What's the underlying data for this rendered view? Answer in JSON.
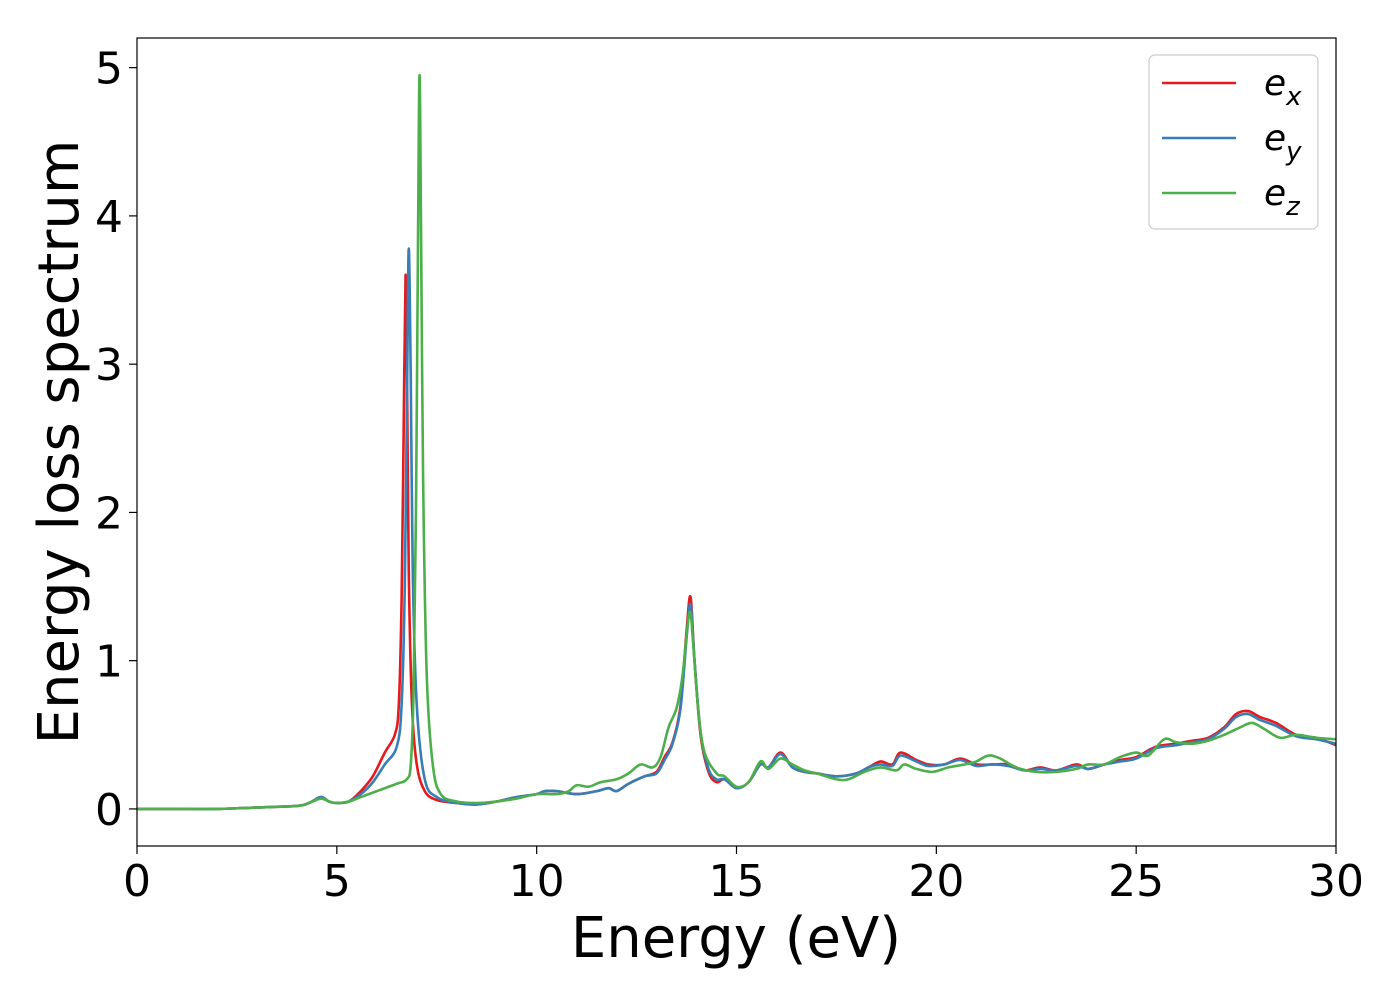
{
  "chart_data": {
    "type": "line",
    "xlabel": "Energy (eV)",
    "ylabel": "Energy loss spectrum",
    "xlim": [
      0,
      30
    ],
    "ylim": [
      -0.25,
      5.2
    ],
    "xticks": [
      0,
      5,
      10,
      15,
      20,
      25,
      30
    ],
    "yticks": [
      0,
      1,
      2,
      3,
      4,
      5
    ],
    "grid": false,
    "legend_position": "top-right",
    "series": [
      {
        "name": "ex",
        "label_base": "e",
        "label_sub": "x",
        "color": "#e41a1c",
        "points": [
          [
            0,
            0
          ],
          [
            1,
            0
          ],
          [
            2,
            0
          ],
          [
            3,
            0.01
          ],
          [
            4,
            0.02
          ],
          [
            4.3,
            0.04
          ],
          [
            4.6,
            0.08
          ],
          [
            4.8,
            0.05
          ],
          [
            5,
            0.04
          ],
          [
            5.3,
            0.05
          ],
          [
            5.6,
            0.12
          ],
          [
            5.9,
            0.22
          ],
          [
            6.2,
            0.38
          ],
          [
            6.45,
            0.5
          ],
          [
            6.55,
            0.7
          ],
          [
            6.62,
            1.4
          ],
          [
            6.67,
            2.5
          ],
          [
            6.72,
            3.6
          ],
          [
            6.76,
            2.8
          ],
          [
            6.8,
            1.6
          ],
          [
            6.88,
            0.7
          ],
          [
            7,
            0.3
          ],
          [
            7.2,
            0.12
          ],
          [
            7.5,
            0.06
          ],
          [
            8,
            0.04
          ],
          [
            8.5,
            0.03
          ],
          [
            9,
            0.05
          ],
          [
            9.5,
            0.08
          ],
          [
            10,
            0.1
          ],
          [
            10.2,
            0.12
          ],
          [
            10.5,
            0.12
          ],
          [
            11,
            0.1
          ],
          [
            11.5,
            0.12
          ],
          [
            11.8,
            0.14
          ],
          [
            12,
            0.12
          ],
          [
            12.3,
            0.17
          ],
          [
            12.7,
            0.22
          ],
          [
            13,
            0.25
          ],
          [
            13.2,
            0.35
          ],
          [
            13.4,
            0.45
          ],
          [
            13.6,
            0.7
          ],
          [
            13.75,
            1.2
          ],
          [
            13.85,
            1.43
          ],
          [
            13.95,
            1.0
          ],
          [
            14.1,
            0.5
          ],
          [
            14.3,
            0.25
          ],
          [
            14.5,
            0.18
          ],
          [
            14.7,
            0.2
          ],
          [
            15,
            0.14
          ],
          [
            15.3,
            0.18
          ],
          [
            15.6,
            0.3
          ],
          [
            15.8,
            0.28
          ],
          [
            16.1,
            0.38
          ],
          [
            16.4,
            0.28
          ],
          [
            16.7,
            0.25
          ],
          [
            17,
            0.24
          ],
          [
            17.5,
            0.22
          ],
          [
            18,
            0.24
          ],
          [
            18.3,
            0.28
          ],
          [
            18.6,
            0.32
          ],
          [
            18.9,
            0.3
          ],
          [
            19.1,
            0.38
          ],
          [
            19.5,
            0.33
          ],
          [
            19.8,
            0.3
          ],
          [
            20.2,
            0.3
          ],
          [
            20.6,
            0.34
          ],
          [
            21,
            0.3
          ],
          [
            21.4,
            0.3
          ],
          [
            21.8,
            0.3
          ],
          [
            22.2,
            0.26
          ],
          [
            22.6,
            0.28
          ],
          [
            23,
            0.26
          ],
          [
            23.5,
            0.3
          ],
          [
            23.8,
            0.27
          ],
          [
            24.2,
            0.3
          ],
          [
            24.6,
            0.33
          ],
          [
            25,
            0.35
          ],
          [
            25.5,
            0.42
          ],
          [
            26,
            0.44
          ],
          [
            26.4,
            0.46
          ],
          [
            26.8,
            0.48
          ],
          [
            27.2,
            0.55
          ],
          [
            27.5,
            0.64
          ],
          [
            27.8,
            0.66
          ],
          [
            28.1,
            0.62
          ],
          [
            28.5,
            0.58
          ],
          [
            29,
            0.5
          ],
          [
            29.5,
            0.48
          ],
          [
            30,
            0.43
          ]
        ]
      },
      {
        "name": "ey",
        "label_base": "e",
        "label_sub": "y",
        "color": "#377eb8",
        "points": [
          [
            0,
            0
          ],
          [
            1,
            0
          ],
          [
            2,
            0
          ],
          [
            3,
            0.01
          ],
          [
            4,
            0.02
          ],
          [
            4.3,
            0.04
          ],
          [
            4.6,
            0.08
          ],
          [
            4.8,
            0.05
          ],
          [
            5,
            0.04
          ],
          [
            5.3,
            0.05
          ],
          [
            5.6,
            0.1
          ],
          [
            5.9,
            0.18
          ],
          [
            6.2,
            0.3
          ],
          [
            6.5,
            0.42
          ],
          [
            6.62,
            0.7
          ],
          [
            6.7,
            1.5
          ],
          [
            6.76,
            2.9
          ],
          [
            6.8,
            3.78
          ],
          [
            6.85,
            2.9
          ],
          [
            6.9,
            1.6
          ],
          [
            7,
            0.7
          ],
          [
            7.2,
            0.2
          ],
          [
            7.5,
            0.08
          ],
          [
            8,
            0.04
          ],
          [
            8.5,
            0.03
          ],
          [
            9,
            0.05
          ],
          [
            9.5,
            0.08
          ],
          [
            10,
            0.1
          ],
          [
            10.2,
            0.12
          ],
          [
            10.5,
            0.12
          ],
          [
            11,
            0.1
          ],
          [
            11.5,
            0.12
          ],
          [
            11.8,
            0.14
          ],
          [
            12,
            0.12
          ],
          [
            12.3,
            0.17
          ],
          [
            12.7,
            0.22
          ],
          [
            13,
            0.24
          ],
          [
            13.2,
            0.33
          ],
          [
            13.4,
            0.44
          ],
          [
            13.6,
            0.68
          ],
          [
            13.75,
            1.15
          ],
          [
            13.85,
            1.38
          ],
          [
            13.95,
            1.0
          ],
          [
            14.1,
            0.52
          ],
          [
            14.3,
            0.27
          ],
          [
            14.5,
            0.2
          ],
          [
            14.7,
            0.2
          ],
          [
            15,
            0.14
          ],
          [
            15.3,
            0.18
          ],
          [
            15.6,
            0.3
          ],
          [
            15.8,
            0.28
          ],
          [
            16.1,
            0.37
          ],
          [
            16.4,
            0.28
          ],
          [
            16.7,
            0.25
          ],
          [
            17,
            0.24
          ],
          [
            17.5,
            0.22
          ],
          [
            18,
            0.24
          ],
          [
            18.3,
            0.28
          ],
          [
            18.6,
            0.3
          ],
          [
            18.9,
            0.29
          ],
          [
            19.1,
            0.36
          ],
          [
            19.5,
            0.32
          ],
          [
            19.8,
            0.29
          ],
          [
            20.2,
            0.3
          ],
          [
            20.6,
            0.33
          ],
          [
            21,
            0.29
          ],
          [
            21.4,
            0.3
          ],
          [
            21.8,
            0.29
          ],
          [
            22.2,
            0.26
          ],
          [
            22.6,
            0.27
          ],
          [
            23,
            0.26
          ],
          [
            23.5,
            0.29
          ],
          [
            23.8,
            0.27
          ],
          [
            24.2,
            0.3
          ],
          [
            24.6,
            0.32
          ],
          [
            25,
            0.34
          ],
          [
            25.5,
            0.41
          ],
          [
            26,
            0.43
          ],
          [
            26.4,
            0.45
          ],
          [
            26.8,
            0.47
          ],
          [
            27.2,
            0.54
          ],
          [
            27.5,
            0.62
          ],
          [
            27.8,
            0.64
          ],
          [
            28.1,
            0.6
          ],
          [
            28.5,
            0.56
          ],
          [
            29,
            0.49
          ],
          [
            29.5,
            0.47
          ],
          [
            30,
            0.44
          ]
        ]
      },
      {
        "name": "ez",
        "label_base": "e",
        "label_sub": "z",
        "color": "#4daf4a",
        "points": [
          [
            0,
            0
          ],
          [
            1,
            0
          ],
          [
            2,
            0
          ],
          [
            3,
            0.01
          ],
          [
            4,
            0.02
          ],
          [
            4.3,
            0.04
          ],
          [
            4.6,
            0.07
          ],
          [
            4.8,
            0.05
          ],
          [
            5,
            0.04
          ],
          [
            5.3,
            0.05
          ],
          [
            5.6,
            0.08
          ],
          [
            6,
            0.12
          ],
          [
            6.5,
            0.17
          ],
          [
            6.75,
            0.2
          ],
          [
            6.85,
            0.3
          ],
          [
            6.92,
            0.8
          ],
          [
            6.98,
            2.0
          ],
          [
            7.03,
            3.8
          ],
          [
            7.07,
            4.95
          ],
          [
            7.11,
            3.8
          ],
          [
            7.16,
            2.2
          ],
          [
            7.25,
            0.9
          ],
          [
            7.4,
            0.3
          ],
          [
            7.6,
            0.1
          ],
          [
            8,
            0.05
          ],
          [
            8.5,
            0.04
          ],
          [
            9,
            0.05
          ],
          [
            9.5,
            0.07
          ],
          [
            10,
            0.1
          ],
          [
            10.5,
            0.1
          ],
          [
            10.8,
            0.12
          ],
          [
            11,
            0.16
          ],
          [
            11.3,
            0.15
          ],
          [
            11.6,
            0.18
          ],
          [
            12,
            0.2
          ],
          [
            12.3,
            0.24
          ],
          [
            12.6,
            0.3
          ],
          [
            12.9,
            0.28
          ],
          [
            13.1,
            0.35
          ],
          [
            13.3,
            0.55
          ],
          [
            13.5,
            0.68
          ],
          [
            13.65,
            0.9
          ],
          [
            13.78,
            1.25
          ],
          [
            13.85,
            1.32
          ],
          [
            13.92,
            1.1
          ],
          [
            14.05,
            0.65
          ],
          [
            14.2,
            0.38
          ],
          [
            14.5,
            0.24
          ],
          [
            14.7,
            0.22
          ],
          [
            15,
            0.15
          ],
          [
            15.3,
            0.18
          ],
          [
            15.6,
            0.32
          ],
          [
            15.8,
            0.27
          ],
          [
            16.1,
            0.34
          ],
          [
            16.4,
            0.3
          ],
          [
            16.7,
            0.26
          ],
          [
            17,
            0.24
          ],
          [
            17.5,
            0.2
          ],
          [
            17.8,
            0.2
          ],
          [
            18.2,
            0.25
          ],
          [
            18.6,
            0.28
          ],
          [
            19,
            0.26
          ],
          [
            19.2,
            0.3
          ],
          [
            19.5,
            0.27
          ],
          [
            19.9,
            0.25
          ],
          [
            20.3,
            0.28
          ],
          [
            20.7,
            0.3
          ],
          [
            21,
            0.32
          ],
          [
            21.3,
            0.36
          ],
          [
            21.6,
            0.34
          ],
          [
            22,
            0.28
          ],
          [
            22.5,
            0.25
          ],
          [
            23,
            0.25
          ],
          [
            23.5,
            0.27
          ],
          [
            23.8,
            0.3
          ],
          [
            24.2,
            0.3
          ],
          [
            24.6,
            0.35
          ],
          [
            25,
            0.38
          ],
          [
            25.3,
            0.36
          ],
          [
            25.7,
            0.47
          ],
          [
            26,
            0.45
          ],
          [
            26.4,
            0.44
          ],
          [
            26.8,
            0.46
          ],
          [
            27.2,
            0.5
          ],
          [
            27.6,
            0.55
          ],
          [
            27.9,
            0.58
          ],
          [
            28.2,
            0.54
          ],
          [
            28.6,
            0.48
          ],
          [
            29,
            0.5
          ],
          [
            29.5,
            0.48
          ],
          [
            30,
            0.47
          ]
        ]
      }
    ]
  }
}
